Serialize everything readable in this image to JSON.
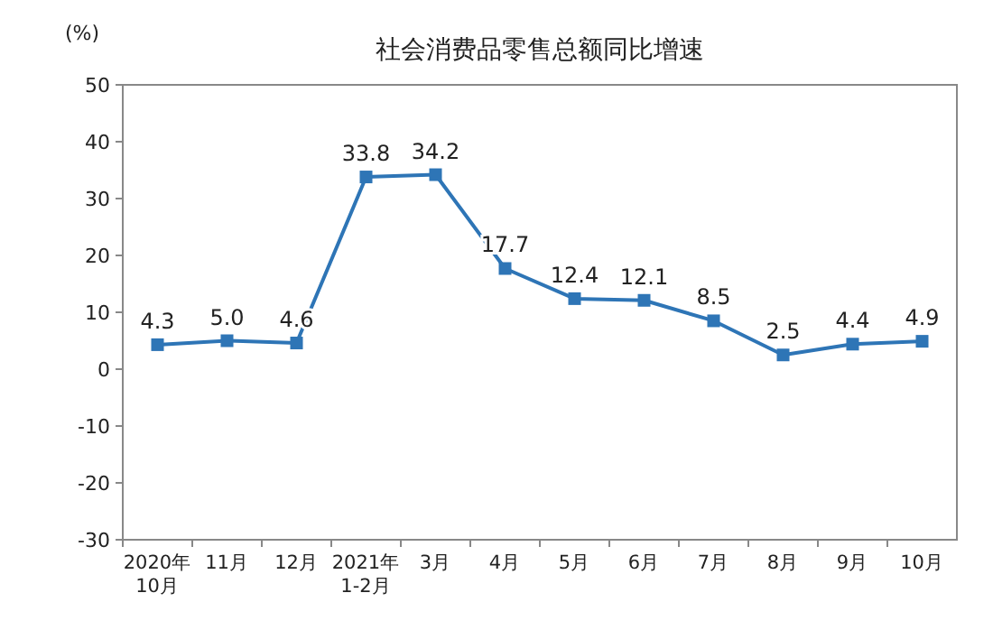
{
  "chart_data": {
    "type": "line",
    "title": "社会消费品零售总额同比增速",
    "ylabel": "(%)",
    "categories": [
      "2020年\n10月",
      "11月",
      "12月",
      "2021年\n1-2月",
      "3月",
      "4月",
      "5月",
      "6月",
      "7月",
      "8月",
      "9月",
      "10月"
    ],
    "series": [
      {
        "color": "#2e75b6",
        "values": [
          4.3,
          5.0,
          4.6,
          33.8,
          34.2,
          17.7,
          12.4,
          12.1,
          8.5,
          2.5,
          4.4,
          4.9
        ],
        "value_labels": [
          "4.3",
          "5.0",
          "4.6",
          "33.8",
          "34.2",
          "17.7",
          "12.4",
          "12.1",
          "8.5",
          "2.5",
          "4.4",
          "4.9"
        ]
      }
    ],
    "ylim": [
      -30,
      50
    ],
    "yticks": [
      -30,
      -20,
      -10,
      0,
      10,
      20,
      30,
      40,
      50
    ],
    "grid": false,
    "marker": "square",
    "line_style": "solid"
  }
}
